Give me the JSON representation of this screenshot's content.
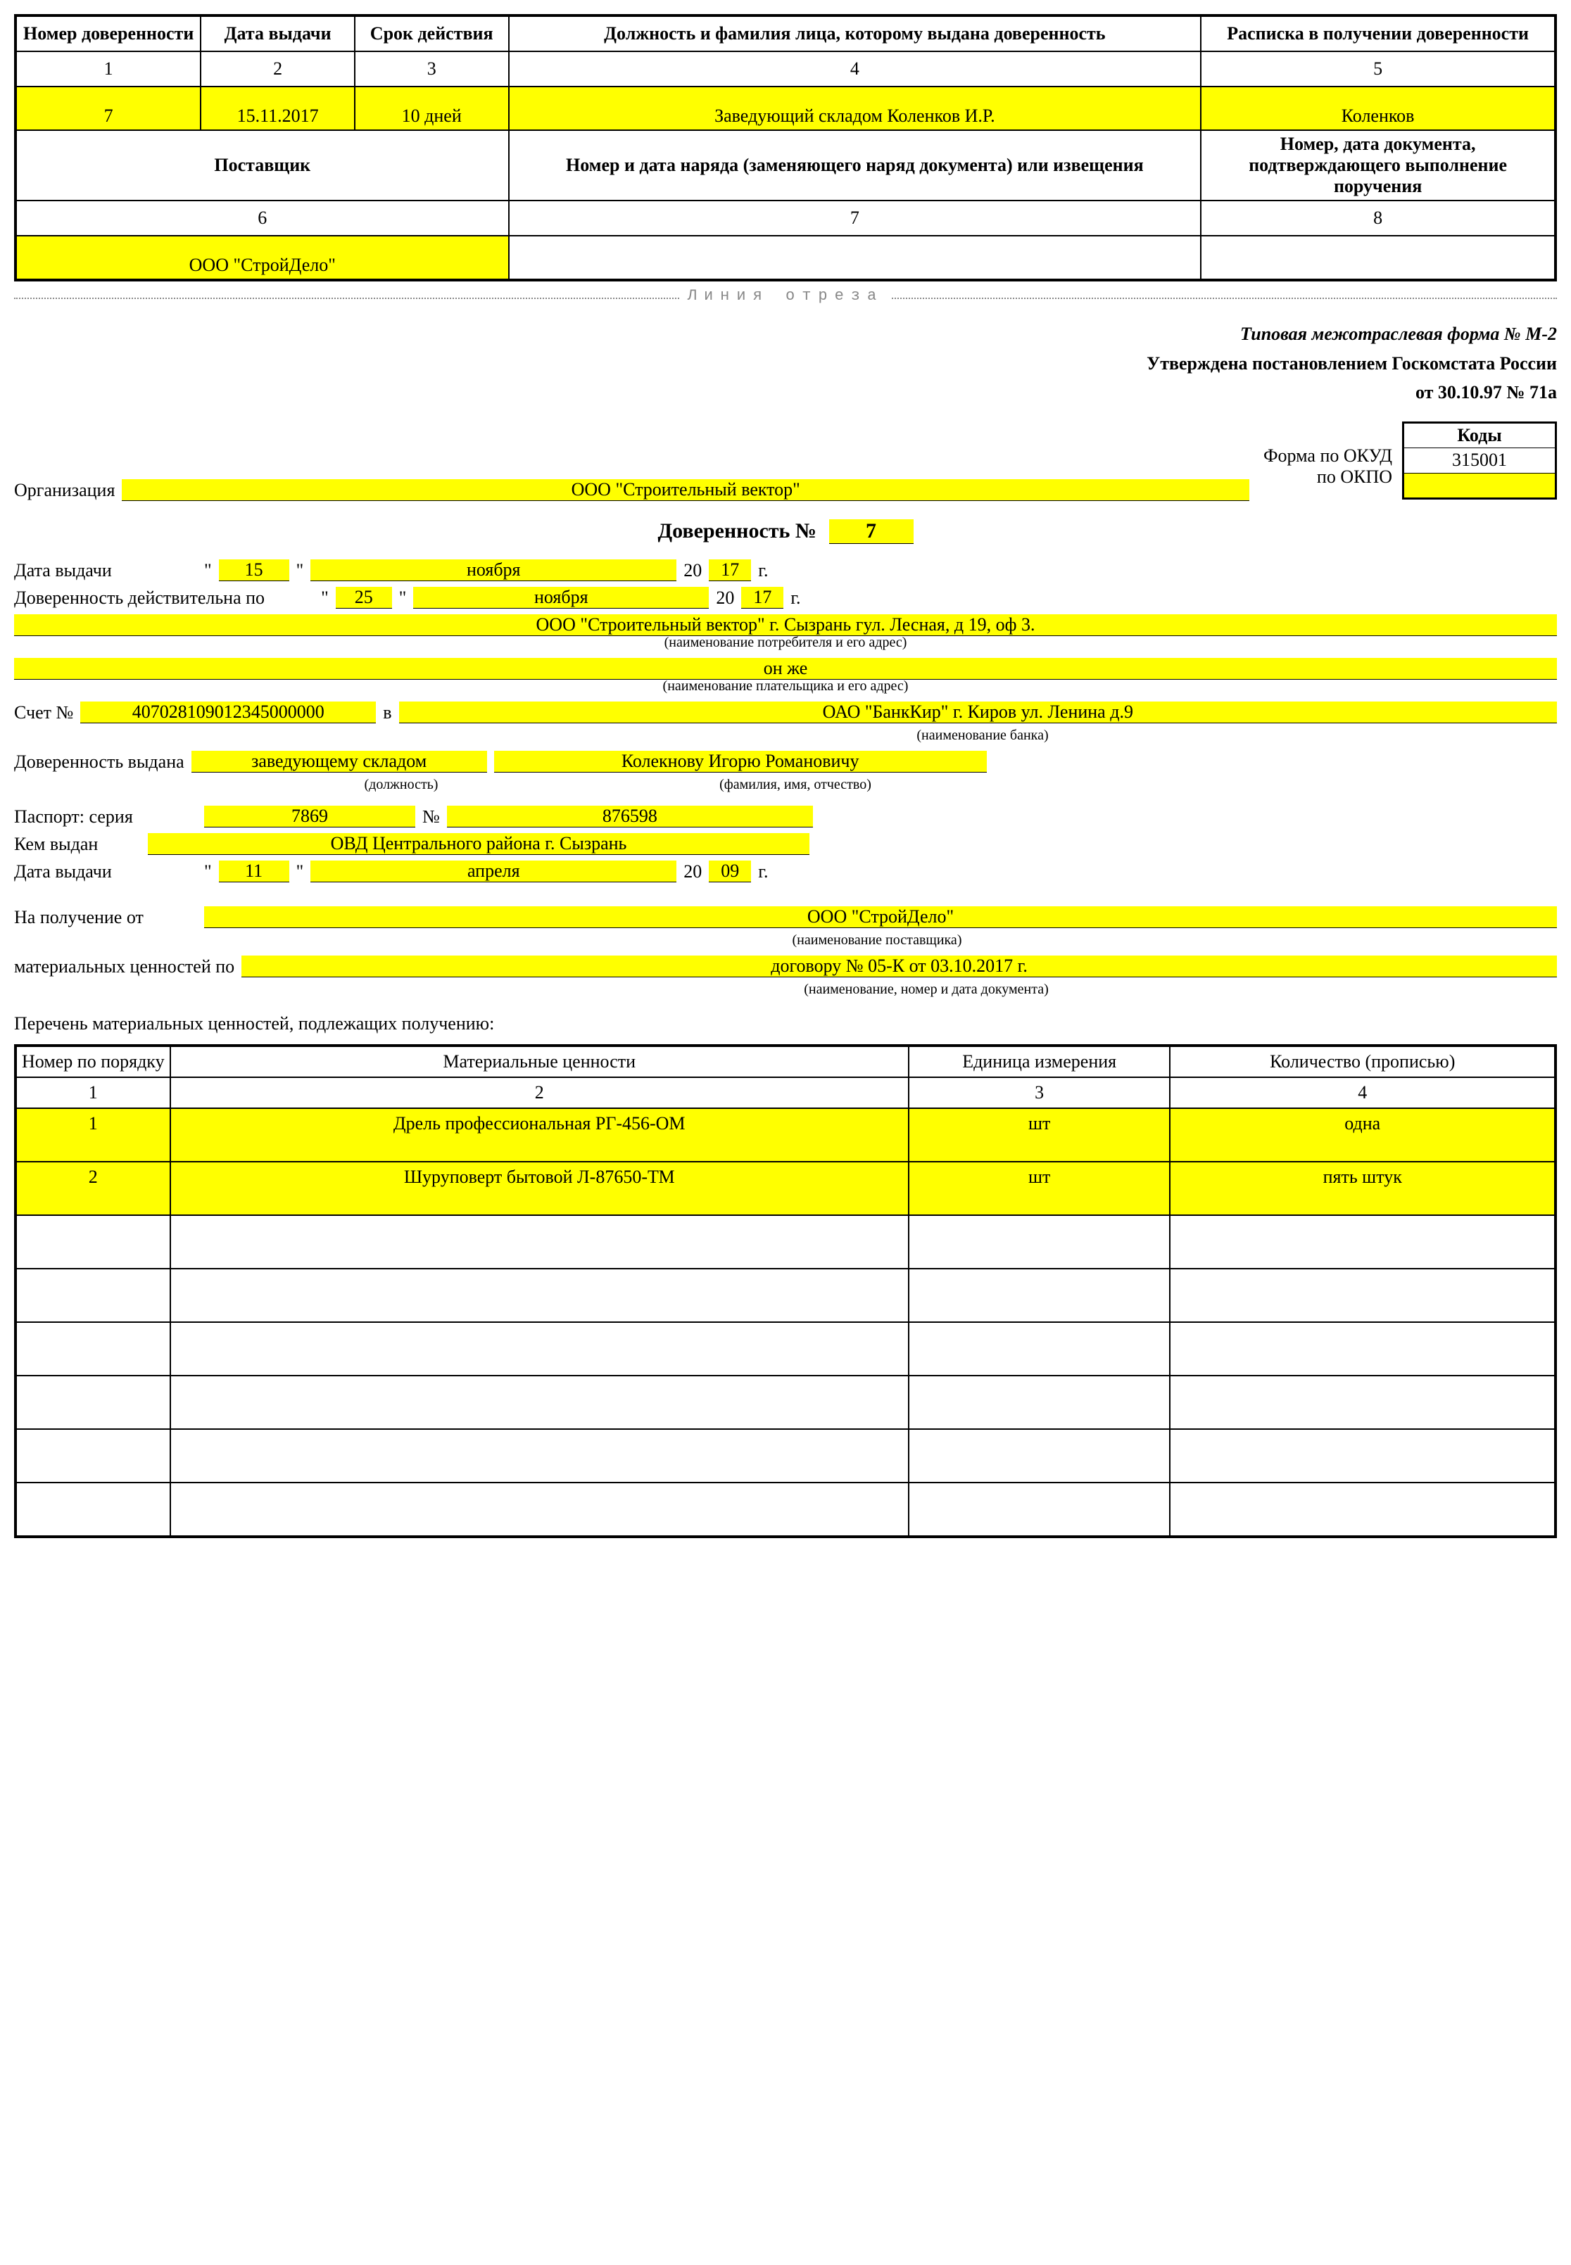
{
  "colors": {
    "highlight": "#ffff00",
    "text": "#000000",
    "background": "#ffffff",
    "cut_line": "#888888"
  },
  "spine": {
    "headers1": {
      "c1": "Номер доверенности",
      "c2": "Дата выдачи",
      "c3": "Срок действия",
      "c4": "Должность и фамилия лица, которому выдана доверенность",
      "c5": "Расписка в получении доверенности"
    },
    "nums1": {
      "c1": "1",
      "c2": "2",
      "c3": "3",
      "c4": "4",
      "c5": "5"
    },
    "row1": {
      "c1": "7",
      "c2": "15.11.2017",
      "c3": "10 дней",
      "c4": "Заведующий складом Коленков И.Р.",
      "c5": "Коленков"
    },
    "headers2": {
      "c1": "Поставщик",
      "c2": "Номер и дата наряда (заменяющего наряд документа) или извещения",
      "c3": "Номер, дата документа, подтверждающего выполнение поручения"
    },
    "nums2": {
      "c1": "6",
      "c2": "7",
      "c3": "8"
    },
    "row2": {
      "c1": "ООО \"СтройДело\"",
      "c2": "",
      "c3": ""
    }
  },
  "cut_label": "Линия отреза",
  "form_header": {
    "line1": "Типовая межотраслевая форма № М-2",
    "line2": "Утверждена постановлением Госкомстата России",
    "line3": "от 30.10.97 № 71а"
  },
  "codes": {
    "title": "Коды",
    "okud_label": "Форма по ОКУД",
    "okud_value": "315001",
    "okpo_label": "по ОКПО",
    "okpo_value": ""
  },
  "org": {
    "label": "Организация",
    "value": "ООО \"Строительный вектор\""
  },
  "title": {
    "prefix": "Доверенность №",
    "number": "7"
  },
  "issue_date": {
    "label": "Дата выдачи",
    "q1": "\"",
    "day": "15",
    "q2": "\"",
    "month": "ноября",
    "y_prefix": "20",
    "yy": "17",
    "y_suffix": "г."
  },
  "valid_until": {
    "label": "Доверенность действительна по",
    "q1": "\"",
    "day": "25",
    "q2": "\"",
    "month": "ноября",
    "y_prefix": "20",
    "yy": "17",
    "y_suffix": "г."
  },
  "consumer": {
    "value": "ООО \"Строительный вектор\" г. Сызрань гул. Лесная, д 19, оф 3.",
    "caption": "(наименование потребителя и его адрес)"
  },
  "payer": {
    "value": "он же",
    "caption": "(наименование плательщика и его адрес)"
  },
  "account": {
    "label": "Счет №",
    "number": "407028109012345000000",
    "in": "в",
    "bank": "ОАО \"БанкКир\" г. Киров ул. Ленина д.9",
    "bank_caption": "(наименование банка)"
  },
  "issued_to": {
    "label": "Доверенность выдана",
    "position": "заведующему складом",
    "position_caption": "(должность)",
    "fio": "Колекнову Игорю Романовичу",
    "fio_caption": "(фамилия, имя, отчество)"
  },
  "passport": {
    "label": "Паспорт:  серия",
    "series": "7869",
    "num_label": "№",
    "number": "876598",
    "issued_by_label": "Кем выдан",
    "issued_by": "ОВД Центрального района г. Сызрань",
    "date_label": "Дата выдачи",
    "q1": "\"",
    "day": "11",
    "q2": "\"",
    "month": "апреля",
    "y_prefix": "20",
    "yy": "09",
    "y_suffix": "г."
  },
  "receive_from": {
    "label": "На получение от",
    "value": "ООО \"СтройДело\"",
    "caption": "(наименование поставщика)"
  },
  "basis": {
    "label": "материальных ценностей по",
    "value": "договору № 05-К от 03.10.2017 г.",
    "caption": "(наименование, номер и дата документа)"
  },
  "items_heading": "Перечень материальных ценностей, подлежащих получению:",
  "items_table": {
    "headers": {
      "c1": "Номер по порядку",
      "c2": "Материальные ценности",
      "c3": "Единица измерения",
      "c4": "Количество (прописью)"
    },
    "nums": {
      "c1": "1",
      "c2": "2",
      "c3": "3",
      "c4": "4"
    },
    "rows": [
      {
        "n": "1",
        "name": "Дрель профессиональная РГ-456-ОМ",
        "unit": "шт",
        "qty": "одна",
        "hl": true
      },
      {
        "n": "2",
        "name": "Шуруповерт бытовой Л-87650-ТМ",
        "unit": "шт",
        "qty": "пять штук",
        "hl": true
      },
      {
        "n": "",
        "name": "",
        "unit": "",
        "qty": "",
        "hl": false
      },
      {
        "n": "",
        "name": "",
        "unit": "",
        "qty": "",
        "hl": false
      },
      {
        "n": "",
        "name": "",
        "unit": "",
        "qty": "",
        "hl": false
      },
      {
        "n": "",
        "name": "",
        "unit": "",
        "qty": "",
        "hl": false
      },
      {
        "n": "",
        "name": "",
        "unit": "",
        "qty": "",
        "hl": false
      },
      {
        "n": "",
        "name": "",
        "unit": "",
        "qty": "",
        "hl": false
      }
    ],
    "col_widths_pct": [
      10,
      48,
      17,
      25
    ]
  }
}
